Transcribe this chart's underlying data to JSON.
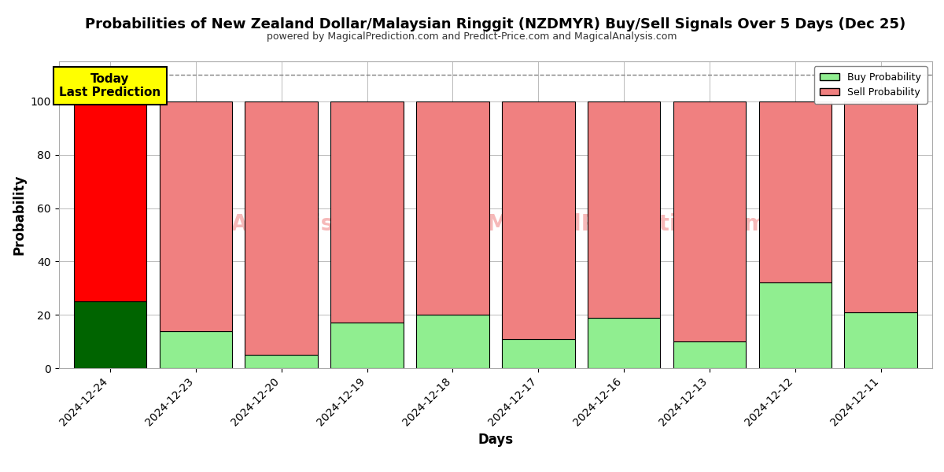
{
  "title": "Probabilities of New Zealand Dollar/Malaysian Ringgit (NZDMYR) Buy/Sell Signals Over 5 Days (Dec 25)",
  "subtitle": "powered by MagicalPrediction.com and Predict-Price.com and MagicalAnalysis.com",
  "xlabel": "Days",
  "ylabel": "Probability",
  "dates": [
    "2024-12-24",
    "2024-12-23",
    "2024-12-20",
    "2024-12-19",
    "2024-12-18",
    "2024-12-17",
    "2024-12-16",
    "2024-12-13",
    "2024-12-12",
    "2024-12-11"
  ],
  "buy_values": [
    25,
    14,
    5,
    17,
    20,
    11,
    19,
    10,
    32,
    21
  ],
  "sell_values": [
    75,
    86,
    95,
    83,
    80,
    89,
    81,
    90,
    68,
    79
  ],
  "buy_color_today": "#006400",
  "sell_color_today": "#ff0000",
  "buy_color_rest": "#90ee90",
  "sell_color_rest": "#f08080",
  "today_box_color": "#ffff00",
  "today_box_edge": "#000000",
  "today_label_line1": "Today",
  "today_label_line2": "Last Prediction",
  "ylim": [
    0,
    115
  ],
  "yticks": [
    0,
    20,
    40,
    60,
    80,
    100
  ],
  "dashed_line_y": 110,
  "watermark_text1": "calAnalysis.com",
  "watermark_text2": "MagicalPrediction.com",
  "background_color": "#ffffff",
  "grid_color": "#bbbbbb",
  "bar_edge_color": "#000000",
  "bar_width": 0.85,
  "figsize": [
    12,
    6
  ],
  "dpi": 100
}
